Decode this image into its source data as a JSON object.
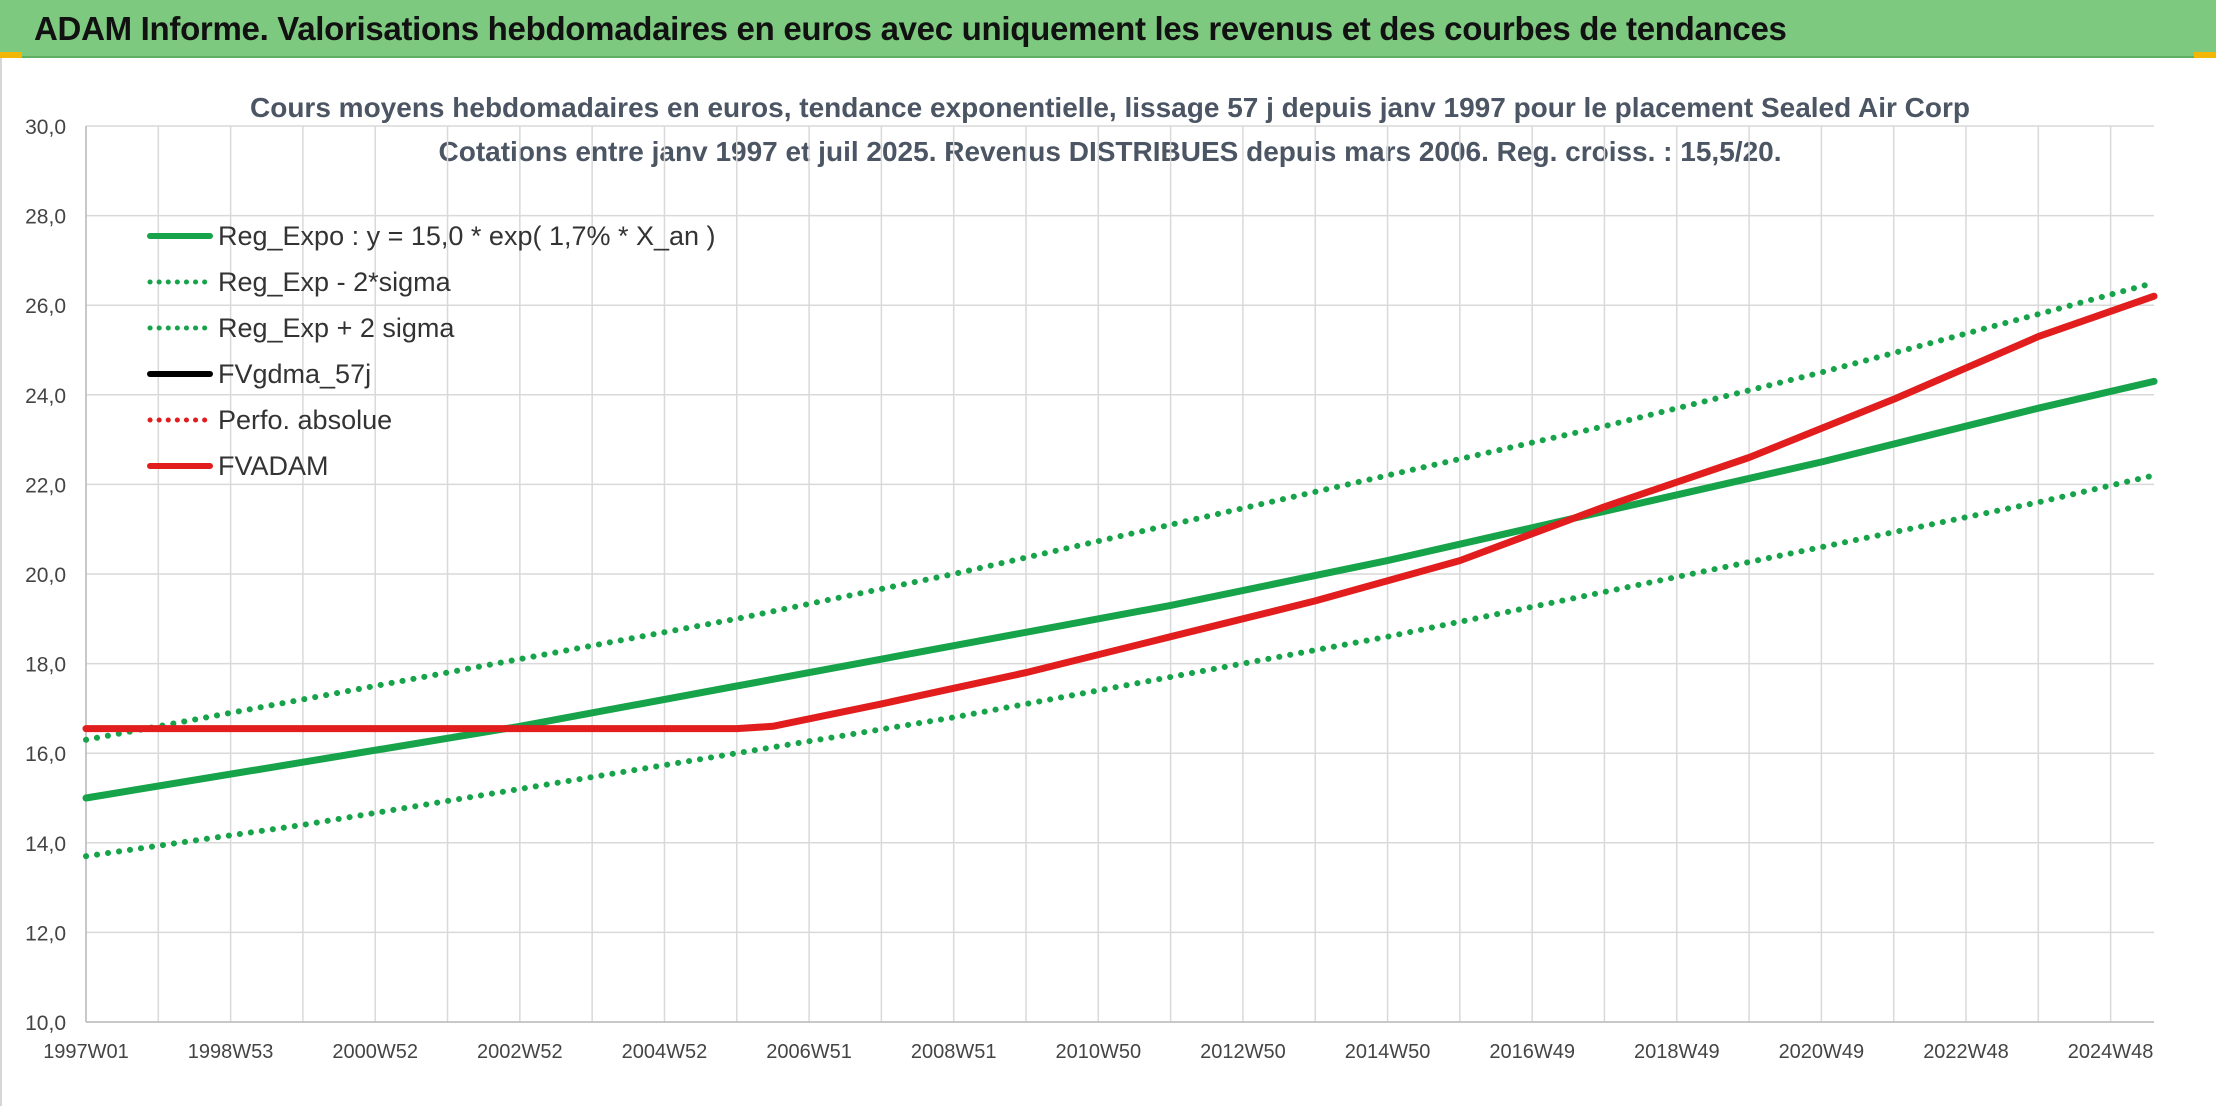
{
  "header": {
    "title": "ADAM Informe. Valorisations hebdomadaires en euros avec uniquement les revenus et des courbes de tendances"
  },
  "colors": {
    "banner": "#7dc97f",
    "green": "#16a34a",
    "red": "#e11d1d",
    "black": "#000000",
    "grid": "#d9d9d9"
  },
  "chart_data": {
    "type": "line",
    "title_line1": "Cours moyens hebdomadaires en euros, tendance exponentielle, lissage 57 j depuis janv 1997 pour le placement Sealed Air Corp",
    "title_line2": "Cotations entre janv 1997 et juil 2025. Revenus DISTRIBUES depuis mars 2006. Reg. croiss. : 15,5/20.",
    "xlabel": "",
    "ylabel": "",
    "ylim": [
      10,
      30
    ],
    "yticks": [
      "10,0",
      "12,0",
      "14,0",
      "16,0",
      "18,0",
      "20,0",
      "22,0",
      "24,0",
      "26,0",
      "28,0",
      "30,0"
    ],
    "xlim": [
      1997.0,
      2025.6
    ],
    "xticks": [
      {
        "label": "1997W01",
        "year": 1997.0
      },
      {
        "label": "1998W53",
        "year": 1999.0
      },
      {
        "label": "2000W52",
        "year": 2001.0
      },
      {
        "label": "2002W52",
        "year": 2003.0
      },
      {
        "label": "2004W52",
        "year": 2005.0
      },
      {
        "label": "2006W51",
        "year": 2007.0
      },
      {
        "label": "2008W51",
        "year": 2009.0
      },
      {
        "label": "2010W50",
        "year": 2011.0
      },
      {
        "label": "2012W50",
        "year": 2013.0
      },
      {
        "label": "2014W50",
        "year": 2015.0
      },
      {
        "label": "2016W49",
        "year": 2017.0
      },
      {
        "label": "2018W49",
        "year": 2019.0
      },
      {
        "label": "2020W49",
        "year": 2021.0
      },
      {
        "label": "2022W48",
        "year": 2023.0
      },
      {
        "label": "2024W48",
        "year": 2025.0
      }
    ],
    "grid": true,
    "legend_position": "top-left",
    "series": [
      {
        "name": "Reg_Expo : y = 15,0 * exp( 1,7% *  X_an )",
        "color": "#16a34a",
        "style": "solid",
        "x": [
          1997,
          2000,
          2003,
          2006,
          2009,
          2012,
          2015,
          2018,
          2021,
          2024,
          2025.6
        ],
        "y": [
          15.0,
          15.8,
          16.6,
          17.5,
          18.4,
          19.3,
          20.3,
          21.4,
          22.5,
          23.7,
          24.3
        ]
      },
      {
        "name": "Reg_Exp - 2*sigma",
        "color": "#16a34a",
        "style": "dotted",
        "x": [
          1997,
          2000,
          2003,
          2006,
          2009,
          2012,
          2015,
          2018,
          2021,
          2024,
          2025.6
        ],
        "y": [
          13.7,
          14.4,
          15.2,
          16.0,
          16.8,
          17.7,
          18.6,
          19.6,
          20.6,
          21.6,
          22.2
        ]
      },
      {
        "name": "Reg_Exp + 2 sigma",
        "color": "#16a34a",
        "style": "dotted",
        "x": [
          1997,
          2000,
          2003,
          2006,
          2009,
          2012,
          2015,
          2018,
          2021,
          2024,
          2025.6
        ],
        "y": [
          16.3,
          17.2,
          18.1,
          19.0,
          20.0,
          21.1,
          22.2,
          23.3,
          24.5,
          25.8,
          26.5
        ]
      },
      {
        "name": "FVgdma_57j",
        "color": "#000000",
        "style": "solid",
        "x": [],
        "y": []
      },
      {
        "name": "Perfo. absolue",
        "color": "#e11d1d",
        "style": "dotted",
        "x": [],
        "y": []
      },
      {
        "name": "FVADAM",
        "color": "#e11d1d",
        "style": "solid",
        "x": [
          1997,
          2006.0,
          2006.5,
          2008,
          2010,
          2012,
          2014,
          2016,
          2018,
          2020,
          2022,
          2024,
          2025.6
        ],
        "y": [
          16.55,
          16.55,
          16.6,
          17.1,
          17.8,
          18.6,
          19.4,
          20.3,
          21.5,
          22.6,
          23.9,
          25.3,
          26.2
        ]
      }
    ]
  }
}
